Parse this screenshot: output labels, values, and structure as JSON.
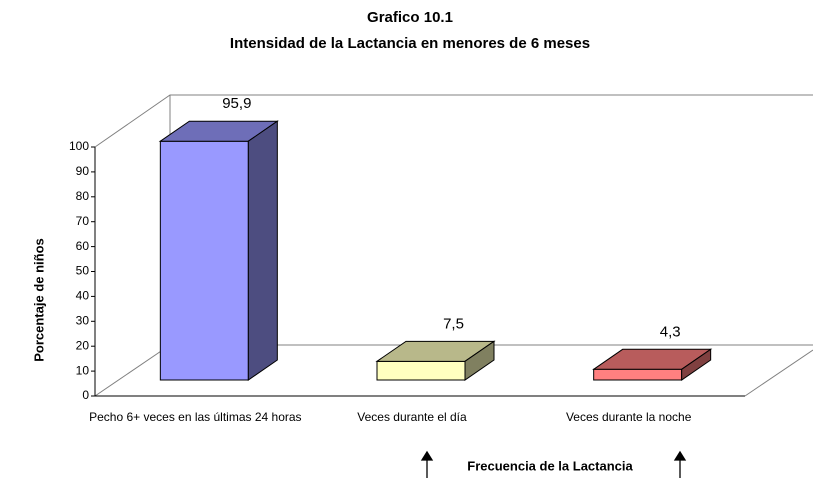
{
  "chart_data": {
    "type": "bar3d",
    "title": "Grafico 10.1",
    "subtitle": "Intensidad de la Lactancia en menores de 6 meses",
    "y_label": "Porcentaje de niños",
    "x_label": "Frecuencia de la Lactancia",
    "categories": [
      "Pecho 6+ veces en las últimas 24 horas",
      "Veces durante el día",
      "Veces durante la noche"
    ],
    "values": [
      95.9,
      7.5,
      4.3
    ],
    "value_labels": [
      "95,9",
      "7,5",
      "4,3"
    ],
    "colors": [
      "#9999ff",
      "#ffffc0",
      "#ff8080"
    ],
    "ylim": [
      0,
      100
    ],
    "yticks": [
      0,
      10,
      20,
      30,
      40,
      50,
      60,
      70,
      80,
      90,
      100
    ],
    "grid": false
  }
}
